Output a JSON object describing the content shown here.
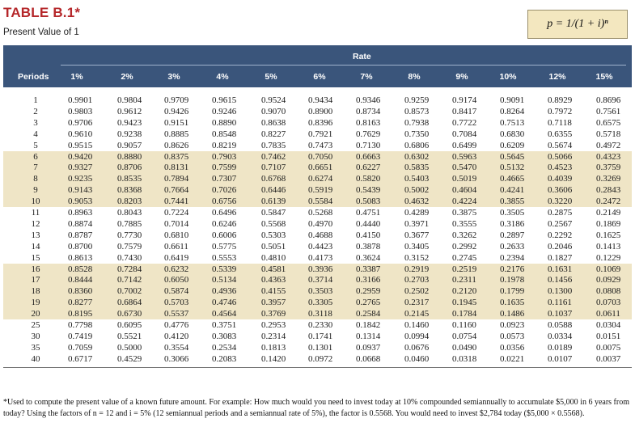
{
  "header": {
    "title": "TABLE B.1*",
    "subtitle": "Present Value of 1",
    "formula": "p = 1/(1 + i)ⁿ"
  },
  "table": {
    "rate_label": "Rate",
    "periods_label": "Periods",
    "rates": [
      "1%",
      "2%",
      "3%",
      "4%",
      "5%",
      "6%",
      "7%",
      "8%",
      "9%",
      "10%",
      "12%",
      "15%"
    ],
    "rows": [
      {
        "period": "1",
        "values": [
          "0.9901",
          "0.9804",
          "0.9709",
          "0.9615",
          "0.9524",
          "0.9434",
          "0.9346",
          "0.9259",
          "0.9174",
          "0.9091",
          "0.8929",
          "0.8696"
        ]
      },
      {
        "period": "2",
        "values": [
          "0.9803",
          "0.9612",
          "0.9426",
          "0.9246",
          "0.9070",
          "0.8900",
          "0.8734",
          "0.8573",
          "0.8417",
          "0.8264",
          "0.7972",
          "0.7561"
        ]
      },
      {
        "period": "3",
        "values": [
          "0.9706",
          "0.9423",
          "0.9151",
          "0.8890",
          "0.8638",
          "0.8396",
          "0.8163",
          "0.7938",
          "0.7722",
          "0.7513",
          "0.7118",
          "0.6575"
        ]
      },
      {
        "period": "4",
        "values": [
          "0.9610",
          "0.9238",
          "0.8885",
          "0.8548",
          "0.8227",
          "0.7921",
          "0.7629",
          "0.7350",
          "0.7084",
          "0.6830",
          "0.6355",
          "0.5718"
        ]
      },
      {
        "period": "5",
        "values": [
          "0.9515",
          "0.9057",
          "0.8626",
          "0.8219",
          "0.7835",
          "0.7473",
          "0.7130",
          "0.6806",
          "0.6499",
          "0.6209",
          "0.5674",
          "0.4972"
        ]
      },
      {
        "period": "6",
        "values": [
          "0.9420",
          "0.8880",
          "0.8375",
          "0.7903",
          "0.7462",
          "0.7050",
          "0.6663",
          "0.6302",
          "0.5963",
          "0.5645",
          "0.5066",
          "0.4323"
        ]
      },
      {
        "period": "7",
        "values": [
          "0.9327",
          "0.8706",
          "0.8131",
          "0.7599",
          "0.7107",
          "0.6651",
          "0.6227",
          "0.5835",
          "0.5470",
          "0.5132",
          "0.4523",
          "0.3759"
        ]
      },
      {
        "period": "8",
        "values": [
          "0.9235",
          "0.8535",
          "0.7894",
          "0.7307",
          "0.6768",
          "0.6274",
          "0.5820",
          "0.5403",
          "0.5019",
          "0.4665",
          "0.4039",
          "0.3269"
        ]
      },
      {
        "period": "9",
        "values": [
          "0.9143",
          "0.8368",
          "0.7664",
          "0.7026",
          "0.6446",
          "0.5919",
          "0.5439",
          "0.5002",
          "0.4604",
          "0.4241",
          "0.3606",
          "0.2843"
        ]
      },
      {
        "period": "10",
        "values": [
          "0.9053",
          "0.8203",
          "0.7441",
          "0.6756",
          "0.6139",
          "0.5584",
          "0.5083",
          "0.4632",
          "0.4224",
          "0.3855",
          "0.3220",
          "0.2472"
        ]
      },
      {
        "period": "11",
        "values": [
          "0.8963",
          "0.8043",
          "0.7224",
          "0.6496",
          "0.5847",
          "0.5268",
          "0.4751",
          "0.4289",
          "0.3875",
          "0.3505",
          "0.2875",
          "0.2149"
        ]
      },
      {
        "period": "12",
        "values": [
          "0.8874",
          "0.7885",
          "0.7014",
          "0.6246",
          "0.5568",
          "0.4970",
          "0.4440",
          "0.3971",
          "0.3555",
          "0.3186",
          "0.2567",
          "0.1869"
        ]
      },
      {
        "period": "13",
        "values": [
          "0.8787",
          "0.7730",
          "0.6810",
          "0.6006",
          "0.5303",
          "0.4688",
          "0.4150",
          "0.3677",
          "0.3262",
          "0.2897",
          "0.2292",
          "0.1625"
        ]
      },
      {
        "period": "14",
        "values": [
          "0.8700",
          "0.7579",
          "0.6611",
          "0.5775",
          "0.5051",
          "0.4423",
          "0.3878",
          "0.3405",
          "0.2992",
          "0.2633",
          "0.2046",
          "0.1413"
        ]
      },
      {
        "period": "15",
        "values": [
          "0.8613",
          "0.7430",
          "0.6419",
          "0.5553",
          "0.4810",
          "0.4173",
          "0.3624",
          "0.3152",
          "0.2745",
          "0.2394",
          "0.1827",
          "0.1229"
        ]
      },
      {
        "period": "16",
        "values": [
          "0.8528",
          "0.7284",
          "0.6232",
          "0.5339",
          "0.4581",
          "0.3936",
          "0.3387",
          "0.2919",
          "0.2519",
          "0.2176",
          "0.1631",
          "0.1069"
        ]
      },
      {
        "period": "17",
        "values": [
          "0.8444",
          "0.7142",
          "0.6050",
          "0.5134",
          "0.4363",
          "0.3714",
          "0.3166",
          "0.2703",
          "0.2311",
          "0.1978",
          "0.1456",
          "0.0929"
        ]
      },
      {
        "period": "18",
        "values": [
          "0.8360",
          "0.7002",
          "0.5874",
          "0.4936",
          "0.4155",
          "0.3503",
          "0.2959",
          "0.2502",
          "0.2120",
          "0.1799",
          "0.1300",
          "0.0808"
        ]
      },
      {
        "period": "19",
        "values": [
          "0.8277",
          "0.6864",
          "0.5703",
          "0.4746",
          "0.3957",
          "0.3305",
          "0.2765",
          "0.2317",
          "0.1945",
          "0.1635",
          "0.1161",
          "0.0703"
        ]
      },
      {
        "period": "20",
        "values": [
          "0.8195",
          "0.6730",
          "0.5537",
          "0.4564",
          "0.3769",
          "0.3118",
          "0.2584",
          "0.2145",
          "0.1784",
          "0.1486",
          "0.1037",
          "0.0611"
        ]
      },
      {
        "period": "25",
        "values": [
          "0.7798",
          "0.6095",
          "0.4776",
          "0.3751",
          "0.2953",
          "0.2330",
          "0.1842",
          "0.1460",
          "0.1160",
          "0.0923",
          "0.0588",
          "0.0304"
        ]
      },
      {
        "period": "30",
        "values": [
          "0.7419",
          "0.5521",
          "0.4120",
          "0.3083",
          "0.2314",
          "0.1741",
          "0.1314",
          "0.0994",
          "0.0754",
          "0.0573",
          "0.0334",
          "0.0151"
        ]
      },
      {
        "period": "35",
        "values": [
          "0.7059",
          "0.5000",
          "0.3554",
          "0.2534",
          "0.1813",
          "0.1301",
          "0.0937",
          "0.0676",
          "0.0490",
          "0.0356",
          "0.0189",
          "0.0075"
        ]
      },
      {
        "period": "40",
        "values": [
          "0.6717",
          "0.4529",
          "0.3066",
          "0.2083",
          "0.1420",
          "0.0972",
          "0.0668",
          "0.0460",
          "0.0318",
          "0.0221",
          "0.0107",
          "0.0037"
        ]
      }
    ]
  },
  "footnote": "*Used to compute the present value of a known future amount. For example: How much would you need to invest today at 10% compounded semiannually to accumulate $5,000 in 6 years from today? Using the factors of n = 12 and i = 5% (12 semiannual periods and a semiannual rate of 5%), the factor is 0.5568. You would need to invest $2,784 today ($5,000 × 0.5568).",
  "colors": {
    "title_red": "#b5272a",
    "header_blue": "#3a557b",
    "band_tan": "#efe5c6",
    "formula_bg": "#f3e7bf"
  }
}
